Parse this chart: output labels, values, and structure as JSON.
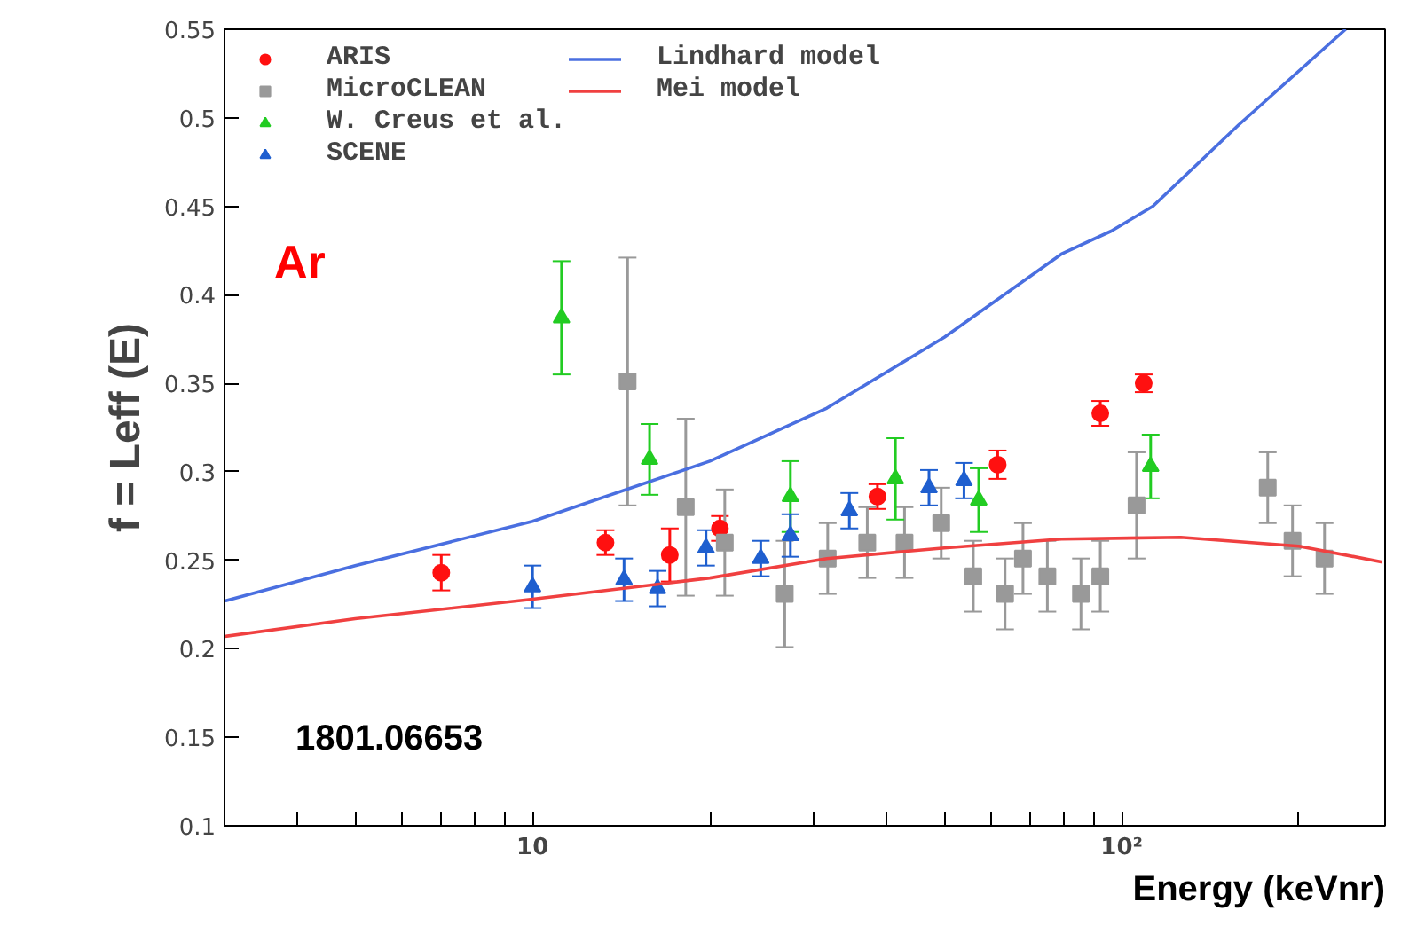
{
  "chart_data": {
    "type": "scatter",
    "xlabel": "Energy (keVnr)",
    "ylabel": "f = Leff (E)",
    "log": "x",
    "grid": false,
    "legend": "top left",
    "xlim": [
      3,
      280
    ],
    "ylim": [
      0.1,
      0.55
    ],
    "xticks": [
      {
        "value": 3,
        "label": null
      },
      {
        "value": 4,
        "label": null
      },
      {
        "value": 5,
        "label": null
      },
      {
        "value": 6,
        "label": null
      },
      {
        "value": 7,
        "label": null
      },
      {
        "value": 8,
        "label": null
      },
      {
        "value": 9,
        "label": null
      },
      10,
      {
        "value": 20,
        "label": null
      },
      {
        "value": 30,
        "label": null
      },
      {
        "value": 40,
        "label": null
      },
      {
        "value": 50,
        "label": null
      },
      {
        "value": 60,
        "label": null
      },
      {
        "value": 70,
        "label": null
      },
      {
        "value": 80,
        "label": null
      },
      {
        "value": 90,
        "label": null
      },
      {
        "value": 100,
        "label": "10²"
      },
      {
        "value": 200,
        "label": null
      }
    ],
    "yticks": [
      0.1,
      0.15,
      0.2,
      0.25,
      0.3,
      0.35,
      0.4,
      0.45,
      0.5,
      0.55
    ],
    "annotations": [
      "Ar",
      "1801.06653"
    ],
    "series": [
      {
        "name": "ARIS",
        "color": "#ff1010",
        "marker": "circle",
        "x": [
          7.0,
          13.3,
          17.1,
          20.8,
          38.5,
          61.6,
          92,
          109
        ],
        "values": [
          0.243,
          0.26,
          0.253,
          0.268,
          0.286,
          0.304,
          0.333,
          0.35
        ],
        "errors": [
          0.01,
          0.007,
          0.015,
          0.007,
          0.007,
          0.008,
          0.007,
          0.005
        ]
      },
      {
        "name": "MicroCLEAN",
        "color": "#999999",
        "marker": "square",
        "x": [
          14.5,
          18.2,
          21.2,
          26.8,
          31.7,
          37,
          42.8,
          49.4,
          56,
          63.4,
          68,
          74.8,
          85.3,
          92,
          106,
          177,
          195,
          221
        ],
        "values": [
          0.351,
          0.28,
          0.26,
          0.231,
          0.251,
          0.26,
          0.26,
          0.271,
          0.241,
          0.231,
          0.251,
          0.241,
          0.231,
          0.241,
          0.281,
          0.291,
          0.261,
          0.251
        ],
        "errors": [
          0.07,
          0.05,
          0.03,
          0.03,
          0.02,
          0.02,
          0.02,
          0.02,
          0.02,
          0.02,
          0.02,
          0.02,
          0.02,
          0.02,
          0.03,
          0.02,
          0.02,
          0.02
        ]
      },
      {
        "name": "W. Creus et al.",
        "color": "#22cc22",
        "marker": "triangle",
        "x": [
          11.2,
          15.8,
          27.4,
          41.3,
          57.2,
          112
        ],
        "values": [
          0.387,
          0.307,
          0.286,
          0.296,
          0.284,
          0.303
        ],
        "errors": [
          0.032,
          0.02,
          0.02,
          0.023,
          0.018,
          0.018
        ]
      },
      {
        "name": "SCENE",
        "color": "#1f5fcf",
        "marker": "triangle",
        "x": [
          10.0,
          14.3,
          16.3,
          19.7,
          24.4,
          27.4,
          34.5,
          47.1,
          54
        ],
        "values": [
          0.235,
          0.239,
          0.234,
          0.257,
          0.251,
          0.264,
          0.278,
          0.291,
          0.295
        ],
        "errors": [
          0.012,
          0.012,
          0.01,
          0.01,
          0.01,
          0.012,
          0.01,
          0.01,
          0.01
        ]
      },
      {
        "name": "Lindhard model",
        "type": "line",
        "color": "#4a6fe0",
        "x": [
          3,
          5,
          10,
          20,
          31.6,
          50,
          79,
          96,
          113,
          158,
          240
        ],
        "values": [
          0.227,
          0.247,
          0.272,
          0.306,
          0.336,
          0.376,
          0.423,
          0.436,
          0.45,
          0.496,
          0.55
        ]
      },
      {
        "name": "Mei model",
        "type": "line",
        "color": "#f04040",
        "x": [
          3,
          5,
          10,
          20,
          31.6,
          50,
          79,
          126,
          200,
          277
        ],
        "values": [
          0.207,
          0.217,
          0.228,
          0.24,
          0.251,
          0.257,
          0.262,
          0.263,
          0.258,
          0.249
        ]
      }
    ]
  }
}
